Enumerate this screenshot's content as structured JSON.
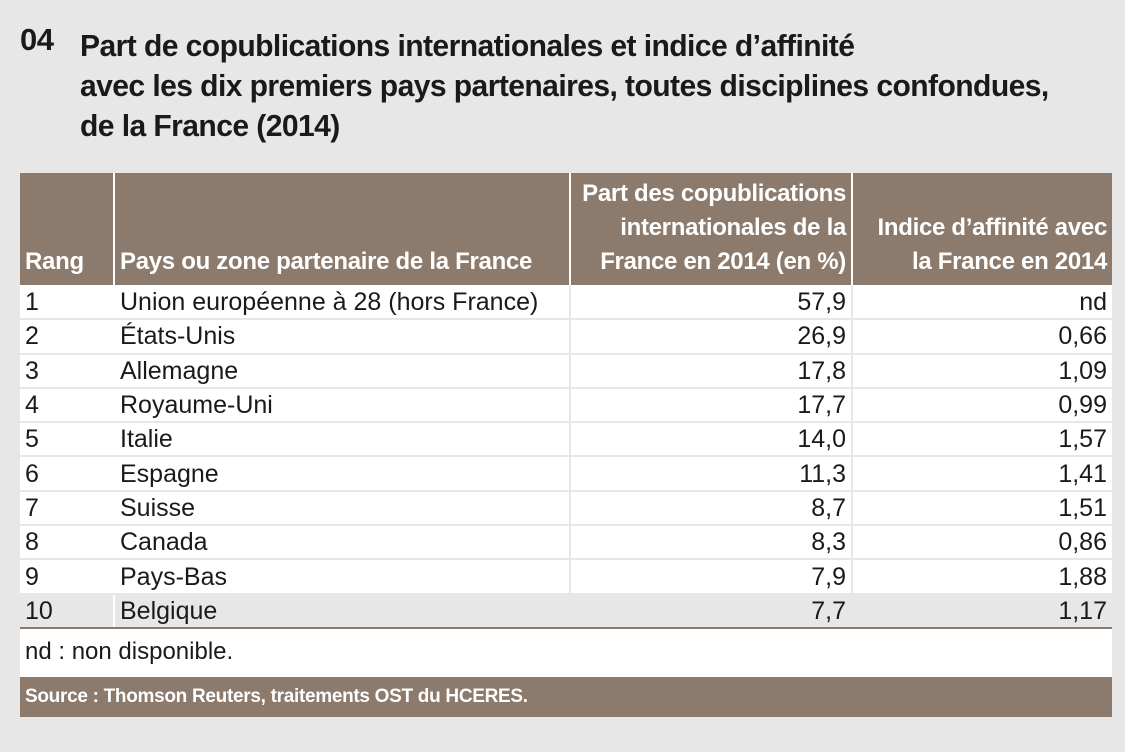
{
  "title": {
    "number": "04",
    "lines": [
      "Part de copublications internationales et indice d’affinité",
      "avec les dix premiers pays partenaires, toutes disciplines confondues,",
      "de la France (2014)"
    ]
  },
  "table": {
    "headers": {
      "rank": "Rang",
      "country": "Pays ou zone partenaire de la France",
      "share": "Part des copublications internationales de la France en 2014 (en %)",
      "affinity": "Indice d’affinité avec la France en 2014"
    },
    "rows": [
      {
        "rank": "1",
        "country": "Union européenne à 28 (hors France)",
        "share": "57,9",
        "affinity": "nd"
      },
      {
        "rank": "2",
        "country": "États-Unis",
        "share": "26,9",
        "affinity": "0,66"
      },
      {
        "rank": "3",
        "country": "Allemagne",
        "share": "17,8",
        "affinity": "1,09"
      },
      {
        "rank": "4",
        "country": "Royaume-Uni",
        "share": "17,7",
        "affinity": "0,99"
      },
      {
        "rank": "5",
        "country": "Italie",
        "share": "14,0",
        "affinity": "1,57"
      },
      {
        "rank": "6",
        "country": "Espagne",
        "share": "11,3",
        "affinity": "1,41"
      },
      {
        "rank": "7",
        "country": "Suisse",
        "share": "8,7",
        "affinity": "1,51"
      },
      {
        "rank": "8",
        "country": "Canada",
        "share": "8,3",
        "affinity": "0,86"
      },
      {
        "rank": "9",
        "country": "Pays-Bas",
        "share": "7,9",
        "affinity": "1,88"
      },
      {
        "rank": "10",
        "country": "Belgique",
        "share": "7,7",
        "affinity": "1,17"
      }
    ]
  },
  "note": "nd : non disponible.",
  "source": "Source : Thomson Reuters, traitements OST du HCERES.",
  "colors": {
    "header_bg": "#8c7a6c",
    "page_bg": "#e7e7e7"
  }
}
